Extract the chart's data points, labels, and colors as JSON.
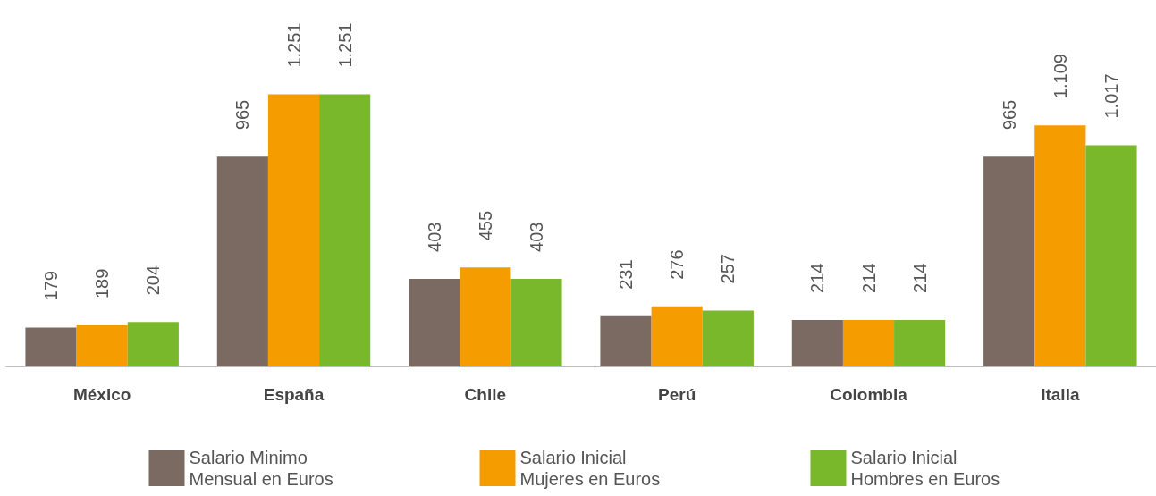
{
  "chart_data": {
    "type": "bar",
    "categories": [
      "México",
      "España",
      "Chile",
      "Perú",
      "Colombia",
      "Italia"
    ],
    "series": [
      {
        "name": "Salario Minimo Mensual en Euros",
        "color": "#7a6a62",
        "values": [
          179,
          965,
          403,
          231,
          214,
          965
        ],
        "value_labels": [
          "179",
          "965",
          "403",
          "231",
          "214",
          "965"
        ]
      },
      {
        "name": "Salario Inicial Mujeres en Euros",
        "color": "#f59c00",
        "values": [
          189,
          1251,
          455,
          276,
          214,
          1109
        ],
        "value_labels": [
          "189",
          "1.251",
          "455",
          "276",
          "214",
          "1.109"
        ]
      },
      {
        "name": "Salario Inicial Hombres en Euros",
        "color": "#78b82a",
        "values": [
          204,
          1251,
          403,
          257,
          214,
          1017
        ],
        "value_labels": [
          "204",
          "1.251",
          "403",
          "257",
          "214",
          "1.017"
        ]
      }
    ],
    "legend": "bottom"
  }
}
